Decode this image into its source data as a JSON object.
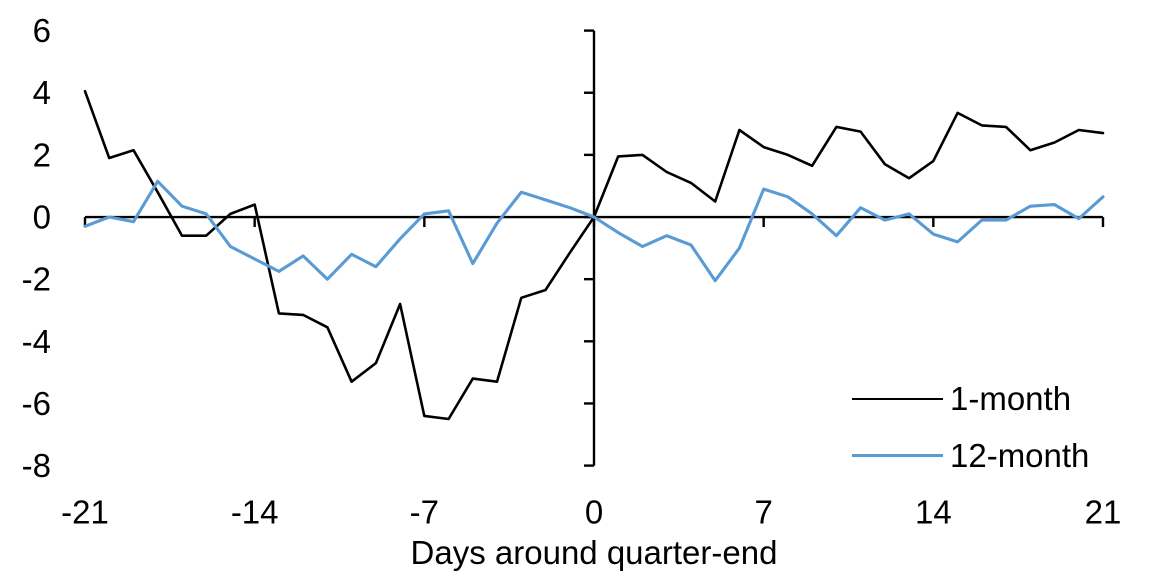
{
  "chart_data": {
    "type": "line",
    "title": "",
    "xlabel": "Days around quarter-end",
    "ylabel": "",
    "xlim": [
      -21,
      21
    ],
    "ylim": [
      -8,
      6
    ],
    "xticks": [
      -21,
      -14,
      -7,
      0,
      7,
      14,
      21
    ],
    "yticks": [
      6,
      4,
      2,
      0,
      -2,
      -4,
      -6,
      -8
    ],
    "grid": false,
    "legend_position": "inside-bottom-right",
    "axis_color": "#000000",
    "x": [
      -21,
      -20,
      -19,
      -18,
      -17,
      -16,
      -15,
      -14,
      -13,
      -12,
      -11,
      -10,
      -9,
      -8,
      -7,
      -6,
      -5,
      -4,
      -3,
      -2,
      -1,
      0,
      1,
      2,
      3,
      4,
      5,
      6,
      7,
      8,
      9,
      10,
      11,
      12,
      13,
      14,
      15,
      16,
      17,
      18,
      19,
      20,
      21
    ],
    "series": [
      {
        "name": "1-month",
        "color": "#000000",
        "values": [
          4.05,
          1.9,
          2.15,
          0.8,
          -0.6,
          -0.6,
          0.1,
          0.4,
          -3.1,
          -3.15,
          -3.55,
          -5.3,
          -4.7,
          -2.8,
          -6.4,
          -6.5,
          -5.2,
          -5.3,
          -2.6,
          -2.35,
          -1.15,
          0,
          1.95,
          2.0,
          1.45,
          1.1,
          0.5,
          2.8,
          2.25,
          2.0,
          1.65,
          2.9,
          2.75,
          1.7,
          1.25,
          1.8,
          3.35,
          2.95,
          2.9,
          2.15,
          2.4,
          2.8,
          2.7
        ]
      },
      {
        "name": "12-month",
        "color": "#5B9BD5",
        "values": [
          -0.3,
          0.0,
          -0.15,
          1.15,
          0.35,
          0.1,
          -0.95,
          -1.35,
          -1.75,
          -1.25,
          -2.0,
          -1.2,
          -1.6,
          -0.7,
          0.1,
          0.2,
          -1.5,
          -0.2,
          0.8,
          0.55,
          0.3,
          0,
          -0.5,
          -0.95,
          -0.6,
          -0.9,
          -2.05,
          -1.0,
          0.9,
          0.65,
          0.1,
          -0.6,
          0.3,
          -0.1,
          0.1,
          -0.55,
          -0.8,
          -0.1,
          -0.1,
          0.35,
          0.4,
          -0.05,
          0.65
        ]
      }
    ]
  }
}
